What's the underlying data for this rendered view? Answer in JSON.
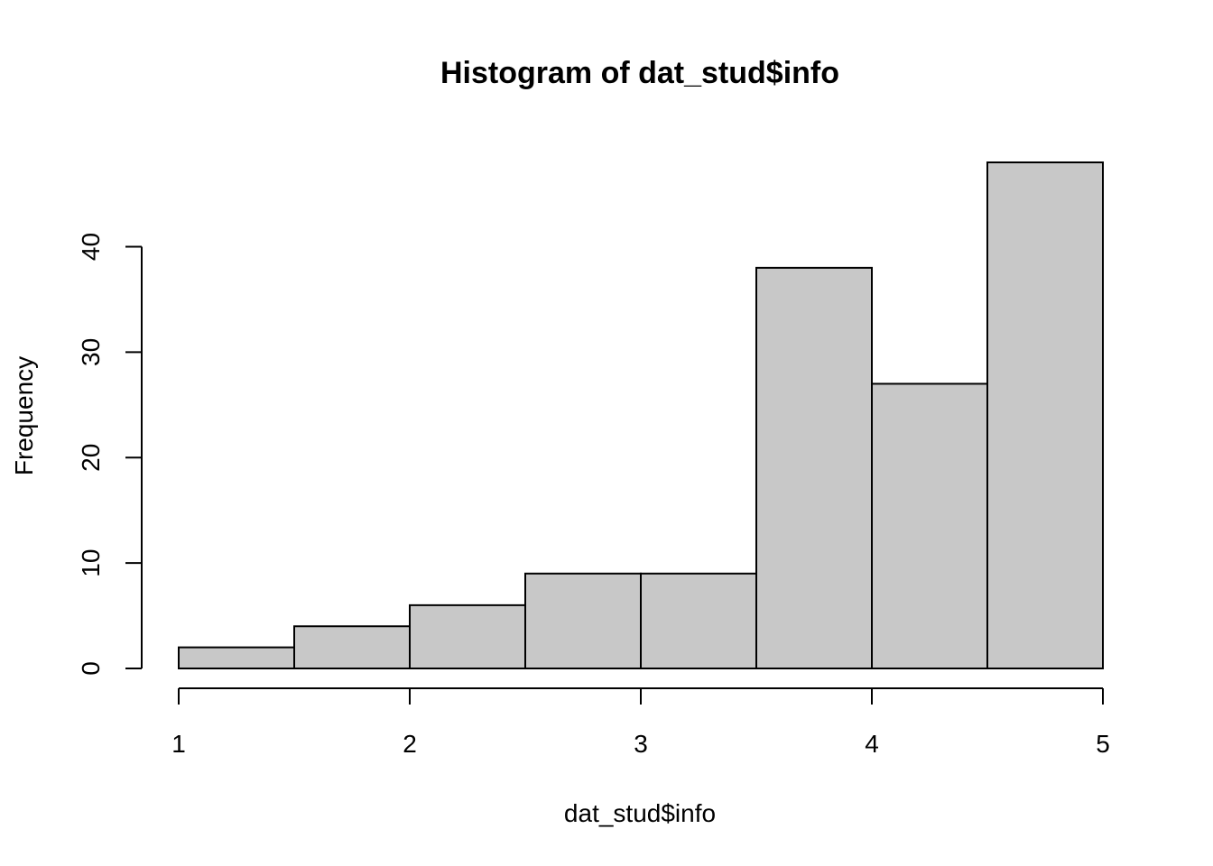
{
  "chart_data": {
    "type": "bar",
    "title": "Histogram of dat_stud$info",
    "xlabel": "dat_stud$info",
    "ylabel": "Frequency",
    "bins": [
      {
        "from": 1.0,
        "to": 1.5,
        "count": 2
      },
      {
        "from": 1.5,
        "to": 2.0,
        "count": 4
      },
      {
        "from": 2.0,
        "to": 2.5,
        "count": 6
      },
      {
        "from": 2.5,
        "to": 3.0,
        "count": 9
      },
      {
        "from": 3.0,
        "to": 3.5,
        "count": 9
      },
      {
        "from": 3.5,
        "to": 4.0,
        "count": 38
      },
      {
        "from": 4.0,
        "to": 4.5,
        "count": 27
      },
      {
        "from": 4.5,
        "to": 5.0,
        "count": 48
      }
    ],
    "x_ticks": [
      1,
      2,
      3,
      4,
      5
    ],
    "y_ticks": [
      0,
      10,
      20,
      30,
      40
    ],
    "xlim": [
      1,
      5
    ],
    "ylim": [
      0,
      48
    ],
    "grid": false,
    "legend": "none",
    "bar_color": "#c8c8c8",
    "edge_color": "#000000"
  }
}
